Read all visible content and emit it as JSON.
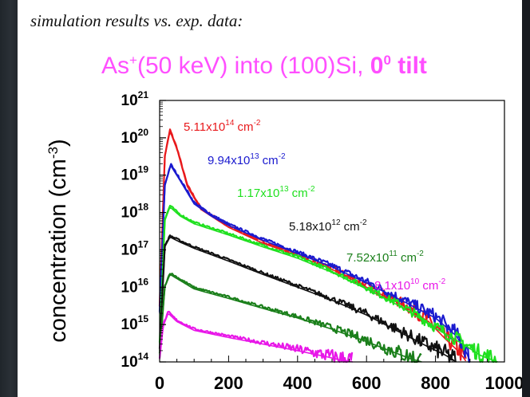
{
  "subtitle": "simulation results vs. exp. data:",
  "title": {
    "prefix": "As",
    "prefix_sup": "+",
    "middle": "(50 keV) into (100)Si, ",
    "bold_main": "0",
    "bold_sup": "0",
    "bold_tail": " tilt"
  },
  "chart_data": {
    "type": "line",
    "title": "As+(50 keV) into (100)Si, 0° tilt",
    "xlabel": "",
    "ylabel": "concentration (cm-3)",
    "xscale": "linear",
    "yscale": "log",
    "xlim": [
      0,
      1000
    ],
    "ylim": [
      100000000000000.0,
      1e+21
    ],
    "x_tick_labels": [
      "0",
      "200",
      "400",
      "600",
      "800",
      "1000"
    ],
    "y_tick_labels": [
      {
        "base": "10",
        "exp": "14"
      },
      {
        "base": "10",
        "exp": "15"
      },
      {
        "base": "10",
        "exp": "16"
      },
      {
        "base": "10",
        "exp": "17"
      },
      {
        "base": "10",
        "exp": "18"
      },
      {
        "base": "10",
        "exp": "19"
      },
      {
        "base": "10",
        "exp": "20"
      },
      {
        "base": "10",
        "exp": "21"
      }
    ],
    "grid": false,
    "series": [
      {
        "name": "5.11x10^14 cm^-2",
        "label": {
          "mant": "5.11x10",
          "exp": "14",
          "unit": " cm",
          "uexp": "-2"
        },
        "color": "#e8191c",
        "peak_x": 30,
        "peak_y": 1.5e+20,
        "end_x": 890,
        "points": [
          [
            0,
            3000000000000000.0
          ],
          [
            15,
            3e+19
          ],
          [
            30,
            1.5e+20
          ],
          [
            50,
            5e+19
          ],
          [
            80,
            5e+18
          ],
          [
            120,
            1.2e+18
          ],
          [
            200,
            4e+17
          ],
          [
            300,
            1.5e+17
          ],
          [
            400,
            7e+16
          ],
          [
            500,
            3e+16
          ],
          [
            600,
            1e+16
          ],
          [
            700,
            3500000000000000.0
          ],
          [
            780,
            1200000000000000.0
          ],
          [
            830,
            400000000000000.0
          ],
          [
            870,
            180000000000000.0
          ],
          [
            890,
            100000000000000.0
          ]
        ]
      },
      {
        "name": "9.94x10^13 cm^-2",
        "label": {
          "mant": "9.94x10",
          "exp": "13",
          "unit": " cm",
          "uexp": "-2"
        },
        "color": "#1a1acf",
        "peak_x": 32,
        "peak_y": 1.8e+19,
        "end_x": 900,
        "points": [
          [
            0,
            2000000000000000.0
          ],
          [
            15,
            5e+18
          ],
          [
            32,
            1.8e+19
          ],
          [
            60,
            7e+18
          ],
          [
            100,
            1.7e+18
          ],
          [
            150,
            8e+17
          ],
          [
            200,
            4.5e+17
          ],
          [
            300,
            1.8e+17
          ],
          [
            400,
            8e+16
          ],
          [
            500,
            3.5e+16
          ],
          [
            600,
            1.3e+16
          ],
          [
            700,
            4500000000000000.0
          ],
          [
            800,
            1500000000000000.0
          ],
          [
            860,
            500000000000000.0
          ],
          [
            890,
            180000000000000.0
          ],
          [
            900,
            100000000000000.0
          ]
        ]
      },
      {
        "name": "1.17x10^13 cm^-2",
        "label": {
          "mant": "1.17x10",
          "exp": "13",
          "unit": " cm",
          "uexp": "-2"
        },
        "color": "#1fe01f",
        "peak_x": 30,
        "peak_y": 1.4e+18,
        "end_x": 980,
        "points": [
          [
            0,
            300000000000000.0
          ],
          [
            15,
            6e+17
          ],
          [
            30,
            1.4e+18
          ],
          [
            60,
            8e+17
          ],
          [
            100,
            5e+17
          ],
          [
            200,
            2.5e+17
          ],
          [
            300,
            1.2e+17
          ],
          [
            400,
            6e+16
          ],
          [
            500,
            2.5e+16
          ],
          [
            600,
            9000000000000000.0
          ],
          [
            700,
            3000000000000000.0
          ],
          [
            800,
            800000000000000.0
          ],
          [
            880,
            300000000000000.0
          ],
          [
            930,
            150000000000000.0
          ],
          [
            980,
            100000000000000.0
          ]
        ]
      },
      {
        "name": "5.18x10^12 cm^-2",
        "label": {
          "mant": "5.18x10",
          "exp": "12",
          "unit": " cm",
          "uexp": "-2"
        },
        "color": "#111111",
        "peak_x": 30,
        "peak_y": 2.2e+17,
        "end_x": 860,
        "points": [
          [
            0,
            200000000000000.0
          ],
          [
            15,
            1.2e+17
          ],
          [
            30,
            2.2e+17
          ],
          [
            60,
            1.6e+17
          ],
          [
            100,
            1.1e+17
          ],
          [
            200,
            5e+16
          ],
          [
            300,
            2.2e+16
          ],
          [
            400,
            1e+16
          ],
          [
            500,
            4500000000000000.0
          ],
          [
            600,
            1800000000000000.0
          ],
          [
            700,
            600000000000000.0
          ],
          [
            780,
            250000000000000.0
          ],
          [
            830,
            150000000000000.0
          ],
          [
            860,
            100000000000000.0
          ]
        ]
      },
      {
        "name": "7.52x10^11 cm^-2",
        "label": {
          "mant": "7.52x10",
          "exp": "11",
          "unit": " cm",
          "uexp": "-2"
        },
        "color": "#1a7f1a",
        "peak_x": 30,
        "peak_y": 2.2e+16,
        "end_x": 760,
        "points": [
          [
            0,
            150000000000000.0
          ],
          [
            15,
            1e+16
          ],
          [
            30,
            2.2e+16
          ],
          [
            60,
            1.5e+16
          ],
          [
            100,
            9000000000000000.0
          ],
          [
            200,
            5000000000000000.0
          ],
          [
            300,
            2700000000000000.0
          ],
          [
            400,
            1500000000000000.0
          ],
          [
            500,
            750000000000000.0
          ],
          [
            600,
            350000000000000.0
          ],
          [
            680,
            180000000000000.0
          ],
          [
            730,
            120000000000000.0
          ],
          [
            760,
            100000000000000.0
          ]
        ]
      },
      {
        "name": "8.1x10^10 cm^-2",
        "label": {
          "mant": "8.1x10",
          "exp": "10",
          "unit": " cm",
          "uexp": "-2"
        },
        "color": "#e817e8",
        "peak_x": 25,
        "peak_y": 2000000000000000.0,
        "end_x": 560,
        "points": [
          [
            0,
            120000000000000.0
          ],
          [
            10,
            900000000000000.0
          ],
          [
            25,
            2000000000000000.0
          ],
          [
            50,
            1200000000000000.0
          ],
          [
            100,
            700000000000000.0
          ],
          [
            200,
            450000000000000.0
          ],
          [
            300,
            300000000000000.0
          ],
          [
            400,
            200000000000000.0
          ],
          [
            480,
            140000000000000.0
          ],
          [
            530,
            110000000000000.0
          ],
          [
            560,
            100000000000000.0
          ]
        ]
      }
    ]
  }
}
